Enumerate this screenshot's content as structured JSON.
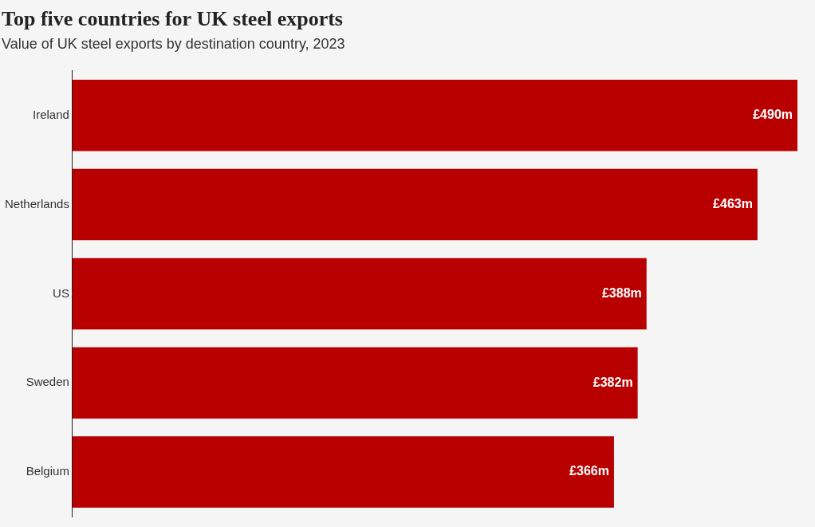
{
  "chart_data": {
    "type": "bar",
    "title": "Top five countries for UK steel exports",
    "subtitle": "Value of UK steel exports by destination country, 2023",
    "categories": [
      "Ireland",
      "Netherlands",
      "US",
      "Sweden",
      "Belgium"
    ],
    "values": [
      490,
      463,
      388,
      382,
      366
    ],
    "value_labels": [
      "£490m",
      "£463m",
      "£388m",
      "£382m",
      "£366m"
    ],
    "color": "#b80000",
    "orientation": "horizontal",
    "xlim": [
      0,
      490
    ],
    "grid": false,
    "data_labels": true,
    "tick_labels": "y"
  }
}
